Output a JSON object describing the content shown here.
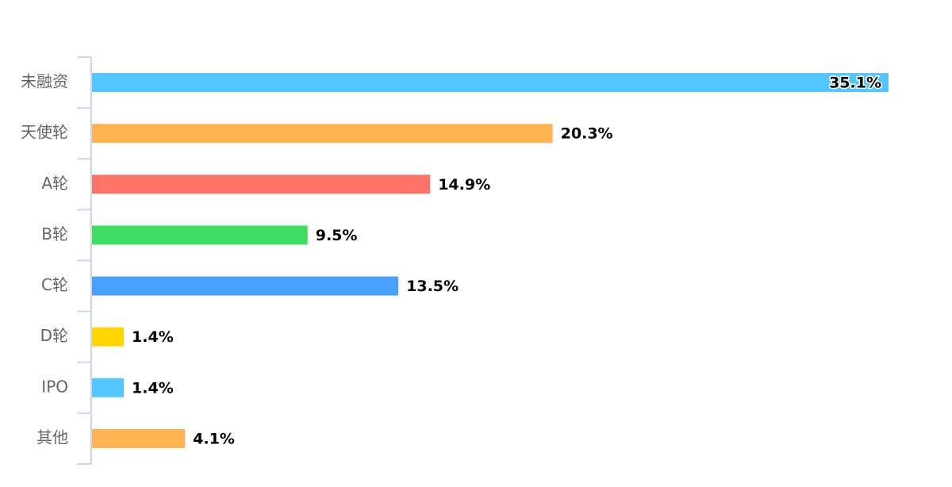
{
  "chart_data": {
    "type": "bar",
    "orientation": "horizontal",
    "categories": [
      "未融资",
      "天使轮",
      "A轮",
      "B轮",
      "C轮",
      "D轮",
      "IPO",
      "其他"
    ],
    "values": [
      35.1,
      20.3,
      14.9,
      9.5,
      13.5,
      1.4,
      1.4,
      4.1
    ],
    "value_labels": [
      "35.1%",
      "20.3%",
      "14.9%",
      "9.5%",
      "13.5%",
      "1.4%",
      "1.4%",
      "4.1%"
    ],
    "colors": [
      "#55c6fd",
      "#ffb353",
      "#ff7469",
      "#43dc62",
      "#4b9ffe",
      "#ffd400",
      "#55c6fd",
      "#ffb353"
    ]
  }
}
